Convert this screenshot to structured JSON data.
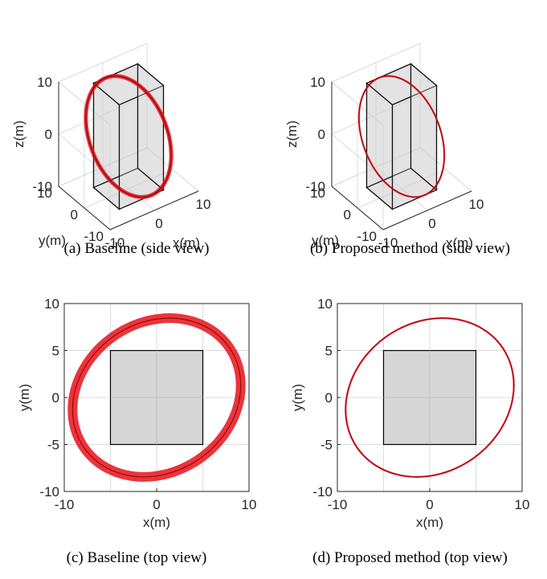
{
  "colors": {
    "trajectory": "#e8101a",
    "trajectory_core": "#8b0000",
    "obstacle_fill": "#cfcfcf",
    "axis": "#262626",
    "grid": "#dcdcdc"
  },
  "captions": {
    "a": "(a) Baseline (side view)",
    "b": "(b) Proposed method (side view)",
    "c": "(c) Baseline (top view)",
    "d": "(d) Proposed method (top view)"
  },
  "chart_data": [
    {
      "id": "a",
      "type": "line3d",
      "xlabel": "x(m)",
      "ylabel": "y(m)",
      "zlabel": "z(m)",
      "xlim": [
        -10,
        10
      ],
      "ylim": [
        -10,
        10
      ],
      "zlim": [
        -10,
        10
      ],
      "xticks": [
        "-10",
        "0",
        "10"
      ],
      "yticks": [
        "-10",
        "0",
        "10"
      ],
      "zticks": [
        "-10",
        "0",
        "10"
      ],
      "grid": true,
      "obstacle": {
        "x": [
          -5,
          5
        ],
        "y": [
          -5,
          5
        ],
        "z": [
          -10,
          10
        ]
      },
      "trajectory": {
        "shape": "tilted ellipse",
        "center": [
          0,
          0,
          0
        ],
        "semi_major": 9.5,
        "semi_minor": 8.0,
        "rotation_deg": 32,
        "z_amplitude": 8,
        "spread": "wide"
      }
    },
    {
      "id": "b",
      "type": "line3d",
      "xlabel": "x(m)",
      "ylabel": "y(m)",
      "zlabel": "z(m)",
      "xlim": [
        -10,
        10
      ],
      "ylim": [
        -10,
        10
      ],
      "zlim": [
        -10,
        10
      ],
      "xticks": [
        "-10",
        "0",
        "10"
      ],
      "yticks": [
        "-10",
        "0",
        "10"
      ],
      "zticks": [
        "-10",
        "0",
        "10"
      ],
      "grid": true,
      "obstacle": {
        "x": [
          -5,
          5
        ],
        "y": [
          -5,
          5
        ],
        "z": [
          -10,
          10
        ]
      },
      "trajectory": {
        "shape": "tilted ellipse",
        "center": [
          0,
          0,
          0
        ],
        "semi_major": 9.5,
        "semi_minor": 8.0,
        "rotation_deg": 32,
        "z_amplitude": 8,
        "spread": "thin"
      }
    },
    {
      "id": "c",
      "type": "line",
      "xlabel": "x(m)",
      "ylabel": "y(m)",
      "xlim": [
        -10,
        10
      ],
      "ylim": [
        -10,
        10
      ],
      "xticks": [
        "-10",
        "0",
        "10"
      ],
      "yticks": [
        "-10",
        "-5",
        "0",
        "5",
        "10"
      ],
      "grid": true,
      "obstacle": {
        "x": [
          -5,
          5
        ],
        "y": [
          -5,
          5
        ]
      },
      "trajectory": {
        "shape": "tilted ellipse",
        "center": [
          0,
          0
        ],
        "semi_major": 9.5,
        "semi_minor": 8.0,
        "rotation_deg": 32,
        "spread": "wide"
      }
    },
    {
      "id": "d",
      "type": "line",
      "xlabel": "x(m)",
      "ylabel": "y(m)",
      "xlim": [
        -10,
        10
      ],
      "ylim": [
        -10,
        10
      ],
      "xticks": [
        "-10",
        "0",
        "10"
      ],
      "yticks": [
        "-10",
        "-5",
        "0",
        "5",
        "10"
      ],
      "grid": true,
      "obstacle": {
        "x": [
          -5,
          5
        ],
        "y": [
          -5,
          5
        ]
      },
      "trajectory": {
        "shape": "tilted ellipse",
        "center": [
          0,
          0
        ],
        "semi_major": 9.5,
        "semi_minor": 8.0,
        "rotation_deg": 32,
        "spread": "thin"
      }
    }
  ]
}
